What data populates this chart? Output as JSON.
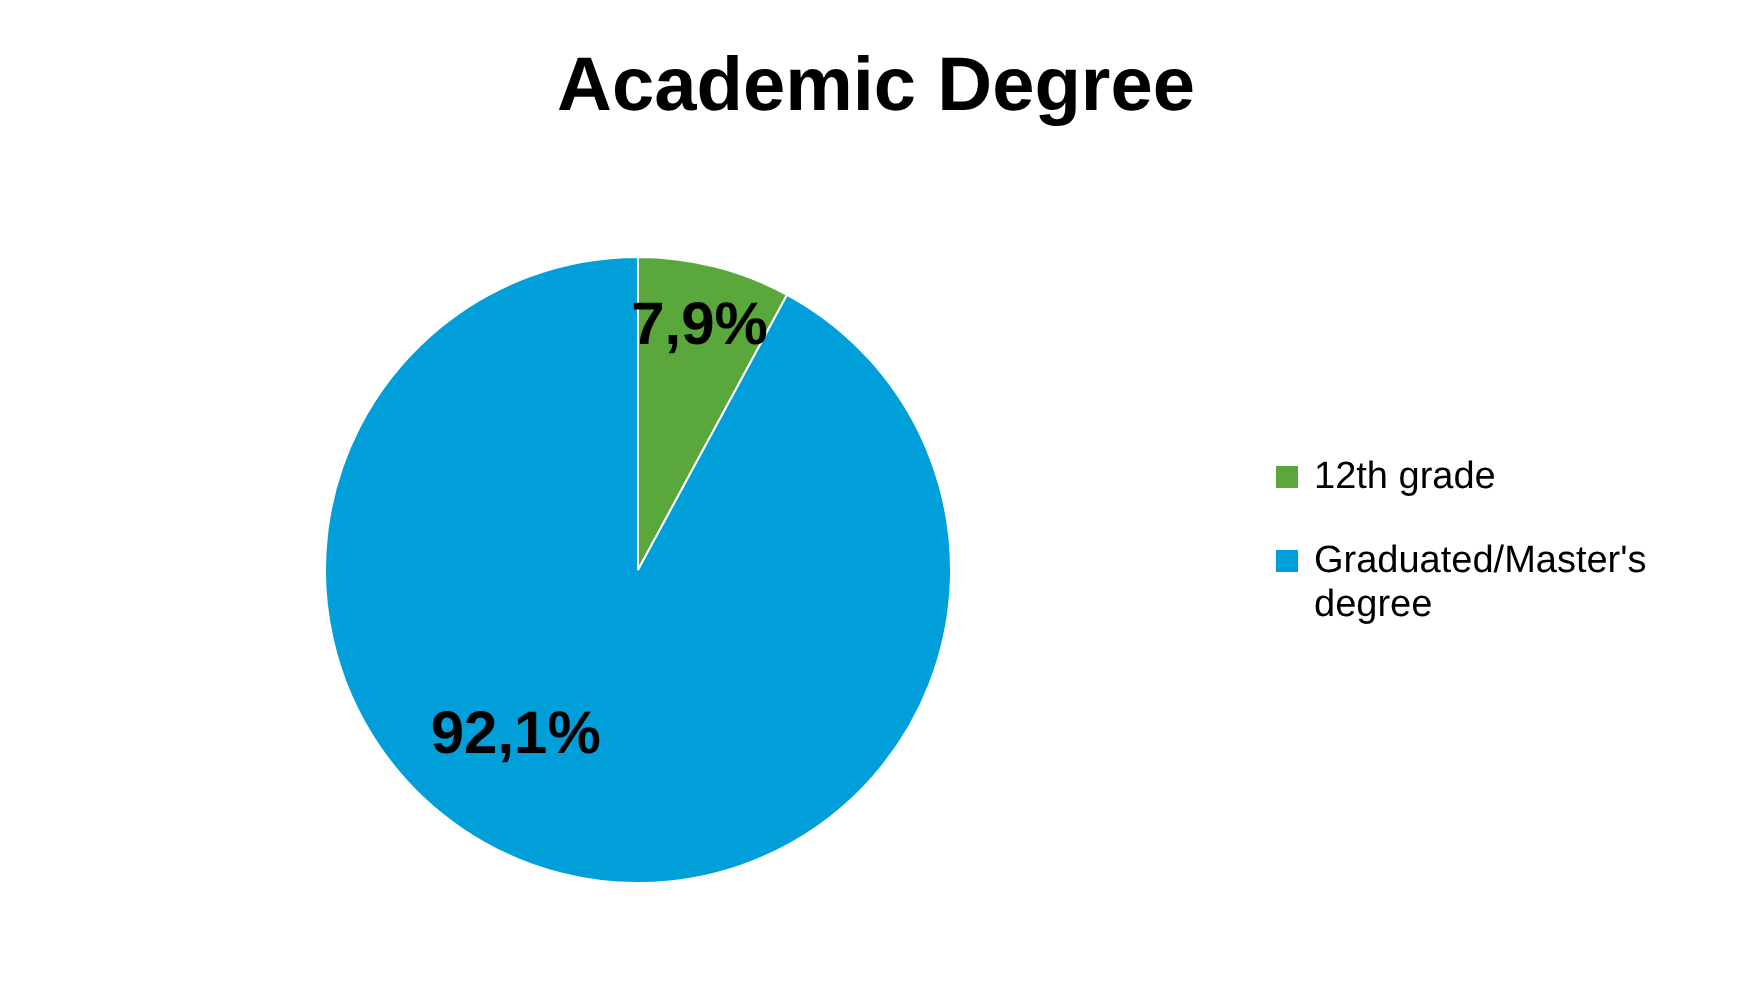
{
  "chart_data": {
    "type": "pie",
    "title": "Academic Degree",
    "categories": [
      "12th grade",
      "Graduated/Master's degree"
    ],
    "values": [
      7.9,
      92.1
    ],
    "colors": [
      "#5aa83c",
      "#009fda"
    ],
    "value_labels": [
      "7,9%",
      "92,1%"
    ],
    "legend": "right"
  }
}
